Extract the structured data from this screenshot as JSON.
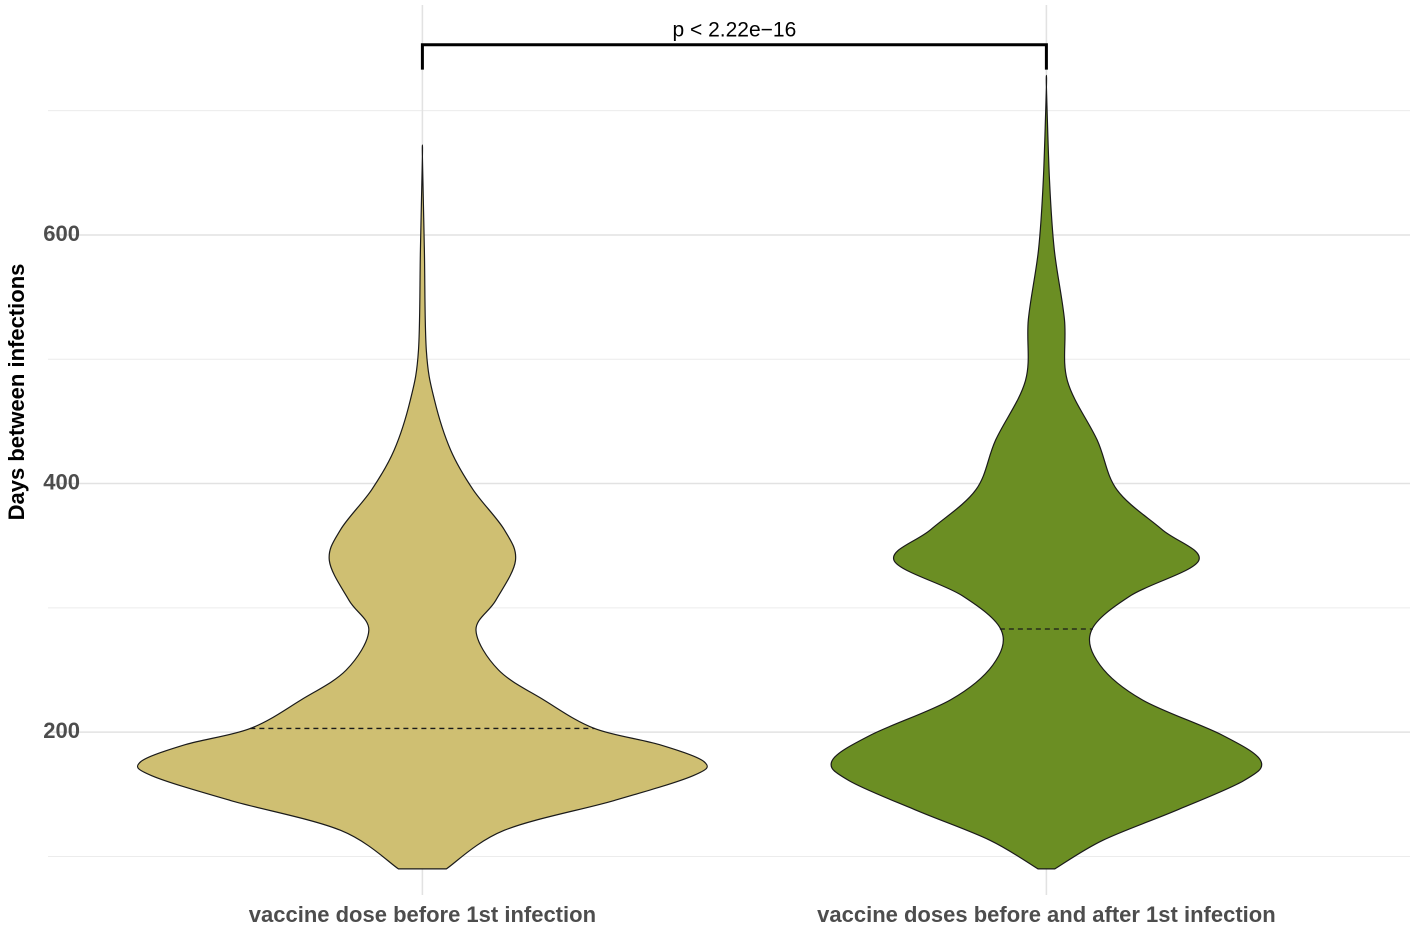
{
  "chart_data": {
    "type": "violin",
    "y_label": "Days between infections",
    "categories": [
      "vaccine dose before 1st infection",
      "vaccine doses before and after 1st infection"
    ],
    "colors": [
      "#cfbf72",
      "#6b8e23"
    ],
    "medians": [
      203,
      283
    ],
    "violins": [
      {
        "y": [
          90,
          121,
          145,
          165,
          176,
          190,
          203,
          226,
          250,
          282,
          306,
          338,
          363,
          395,
          427,
          467,
          507,
          588,
          663
        ],
        "width": [
          0.085,
          0.29,
          0.68,
          0.96,
          1.0,
          0.84,
          0.61,
          0.43,
          0.27,
          0.19,
          0.26,
          0.33,
          0.29,
          0.18,
          0.1,
          0.043,
          0.014,
          0.007,
          0
        ]
      },
      {
        "y": [
          90,
          113,
          137,
          161,
          177,
          198,
          226,
          254,
          282,
          310,
          338,
          363,
          395,
          435,
          483,
          532,
          588,
          644,
          719
        ],
        "width": [
          0.03,
          0.2,
          0.46,
          0.7,
          0.76,
          0.62,
          0.34,
          0.19,
          0.16,
          0.3,
          0.54,
          0.41,
          0.25,
          0.18,
          0.074,
          0.064,
          0.028,
          0.011,
          0
        ]
      }
    ],
    "ylim": [
      69,
      785
    ],
    "yticks": [
      200,
      400,
      600
    ],
    "minor_yticks": [
      100,
      300,
      500,
      700
    ],
    "grid": true,
    "comparison": {
      "label": "p < 2.22e−16",
      "y": 753,
      "tip_y": 733
    }
  }
}
